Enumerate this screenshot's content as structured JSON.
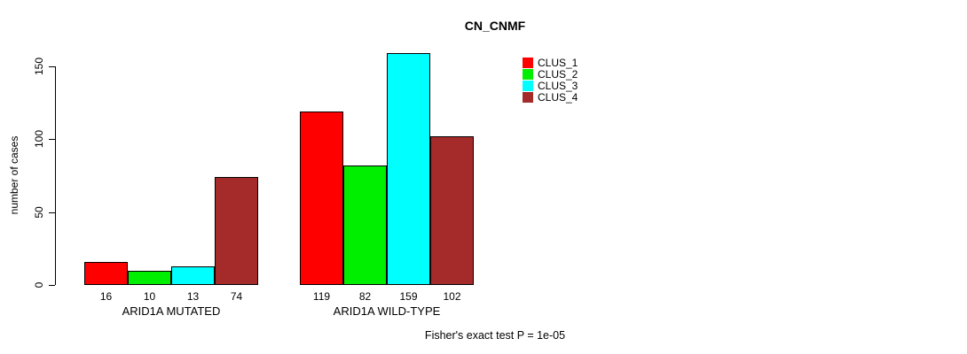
{
  "title": "CN_CNMF",
  "chart_data": {
    "type": "bar",
    "title": "CN_CNMF",
    "xlabel": "",
    "ylabel": "number of cases",
    "categories": [
      "ARID1A MUTATED",
      "ARID1A WILD-TYPE"
    ],
    "series": [
      {
        "name": "CLUS_1",
        "color": "#ff0000",
        "values": [
          16,
          119
        ]
      },
      {
        "name": "CLUS_2",
        "color": "#00ee00",
        "values": [
          10,
          82
        ]
      },
      {
        "name": "CLUS_3",
        "color": "#00ffff",
        "values": [
          13,
          159
        ]
      },
      {
        "name": "CLUS_4",
        "color": "#a52a2a",
        "values": [
          74,
          102
        ]
      }
    ],
    "yticks": [
      0,
      50,
      100,
      150
    ],
    "ylim": [
      0,
      165
    ],
    "grid": false,
    "bar_value_labels": true,
    "legend_position": "top-right",
    "legend_entries": [
      "CLUS_1",
      "CLUS_2",
      "CLUS_3",
      "CLUS_4"
    ],
    "annotation": "Fisher's exact test P = 1e-05"
  }
}
